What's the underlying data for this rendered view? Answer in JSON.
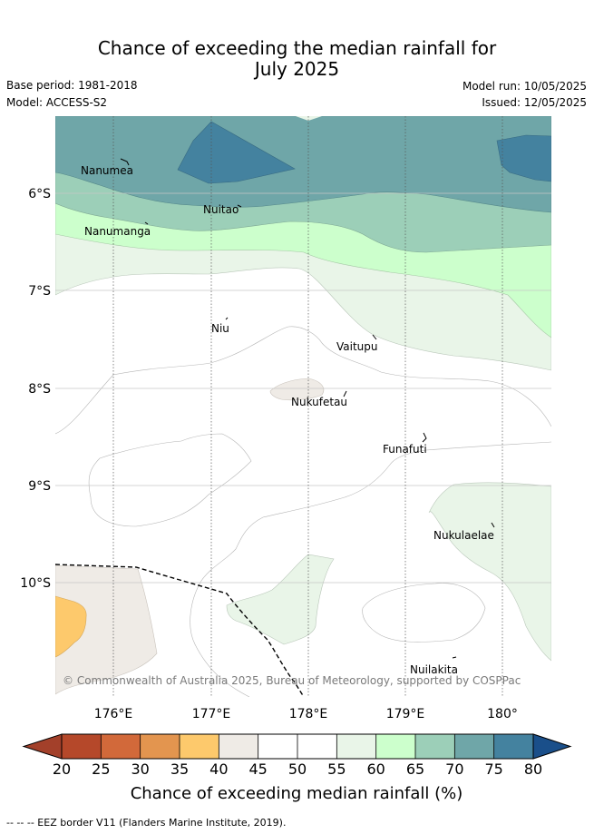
{
  "title_line1": "Chance of exceeding the median rainfall for",
  "title_line2": "July 2025",
  "base_period": "Base period: 1981-2018",
  "model": "Model: ACCESS-S2",
  "model_run": "Model run: 10/05/2025",
  "issued": "Issued: 12/05/2025",
  "lat_labels": [
    "6°S",
    "7°S",
    "8°S",
    "9°S",
    "10°S"
  ],
  "lon_labels": [
    "176°E",
    "177°E",
    "178°E",
    "179°E",
    "180°"
  ],
  "islands": [
    {
      "name": "Nanumea"
    },
    {
      "name": "Nuitao"
    },
    {
      "name": "Nanumanga"
    },
    {
      "name": "Niu"
    },
    {
      "name": "Vaitupu"
    },
    {
      "name": "Nukufetau"
    },
    {
      "name": "Funafuti"
    },
    {
      "name": "Nukulaelae"
    },
    {
      "name": "Nuilakita"
    }
  ],
  "copyright": "© Commonwealth of Australia 2025, Bureau of Meteorology, supported by COSPPac",
  "colorbar": {
    "ticks": [
      "20",
      "25",
      "30",
      "35",
      "40",
      "45",
      "50",
      "55",
      "60",
      "65",
      "70",
      "75",
      "80"
    ],
    "colors": [
      "#b5482a",
      "#d2693a",
      "#e3954f",
      "#fdc96c",
      "#efebe6",
      "#ffffff",
      "#ffffff",
      "#e9f5e8",
      "#ccffcc",
      "#9ccfb8",
      "#6fa6a8",
      "#44829f"
    ],
    "under_color": "#a3402a",
    "over_color": "#1a4f8a",
    "label": "Chance of exceeding median rainfall (%)"
  },
  "footnote": "-- -- -- EEZ border V11 (Flanders Marine Institute, 2019)."
}
